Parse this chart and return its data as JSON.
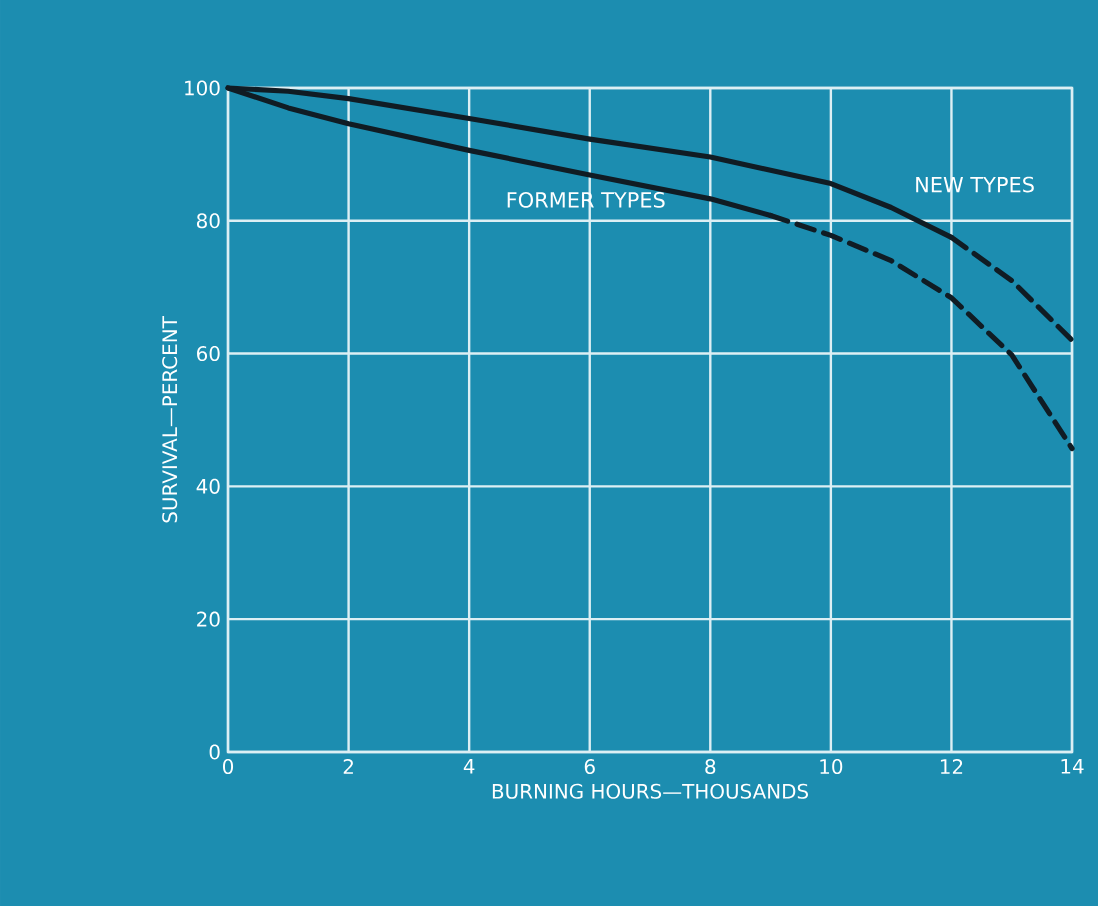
{
  "chart_data": {
    "type": "line",
    "xlabel": "BURNING HOURS—THOUSANDS",
    "ylabel": "SURVIVAL—PERCENT",
    "xlim": [
      0,
      14
    ],
    "ylim": [
      0,
      100
    ],
    "xticks": [
      0,
      2,
      4,
      6,
      8,
      10,
      12,
      14
    ],
    "yticks": [
      0,
      20,
      40,
      60,
      80,
      100
    ],
    "grid": true,
    "legend": false,
    "marker": "none",
    "series": [
      {
        "name": "NEW TYPES",
        "color": "#101c24",
        "line_style": "solid",
        "x": [
          0,
          1,
          2,
          4,
          6,
          8,
          10,
          11,
          12
        ],
        "values": [
          100,
          99.5,
          98.4,
          95.4,
          92.3,
          89.6,
          85.6,
          82,
          77.5
        ]
      },
      {
        "color": "#101c24",
        "line_style": "dashed",
        "x": [
          12,
          13,
          14
        ],
        "values": [
          77.5,
          71,
          62
        ]
      },
      {
        "name": "FORMER TYPES",
        "color": "#101c24",
        "line_style": "solid",
        "x": [
          0,
          1,
          2,
          4,
          6,
          8,
          9
        ],
        "values": [
          100,
          97,
          94.6,
          90.6,
          86.9,
          83.3,
          80.8
        ]
      },
      {
        "color": "#101c24",
        "line_style": "dashed",
        "x": [
          9,
          10,
          11,
          12,
          13,
          14
        ],
        "values": [
          80.8,
          77.8,
          74,
          68.4,
          59.8,
          45.7
        ]
      }
    ]
  }
}
